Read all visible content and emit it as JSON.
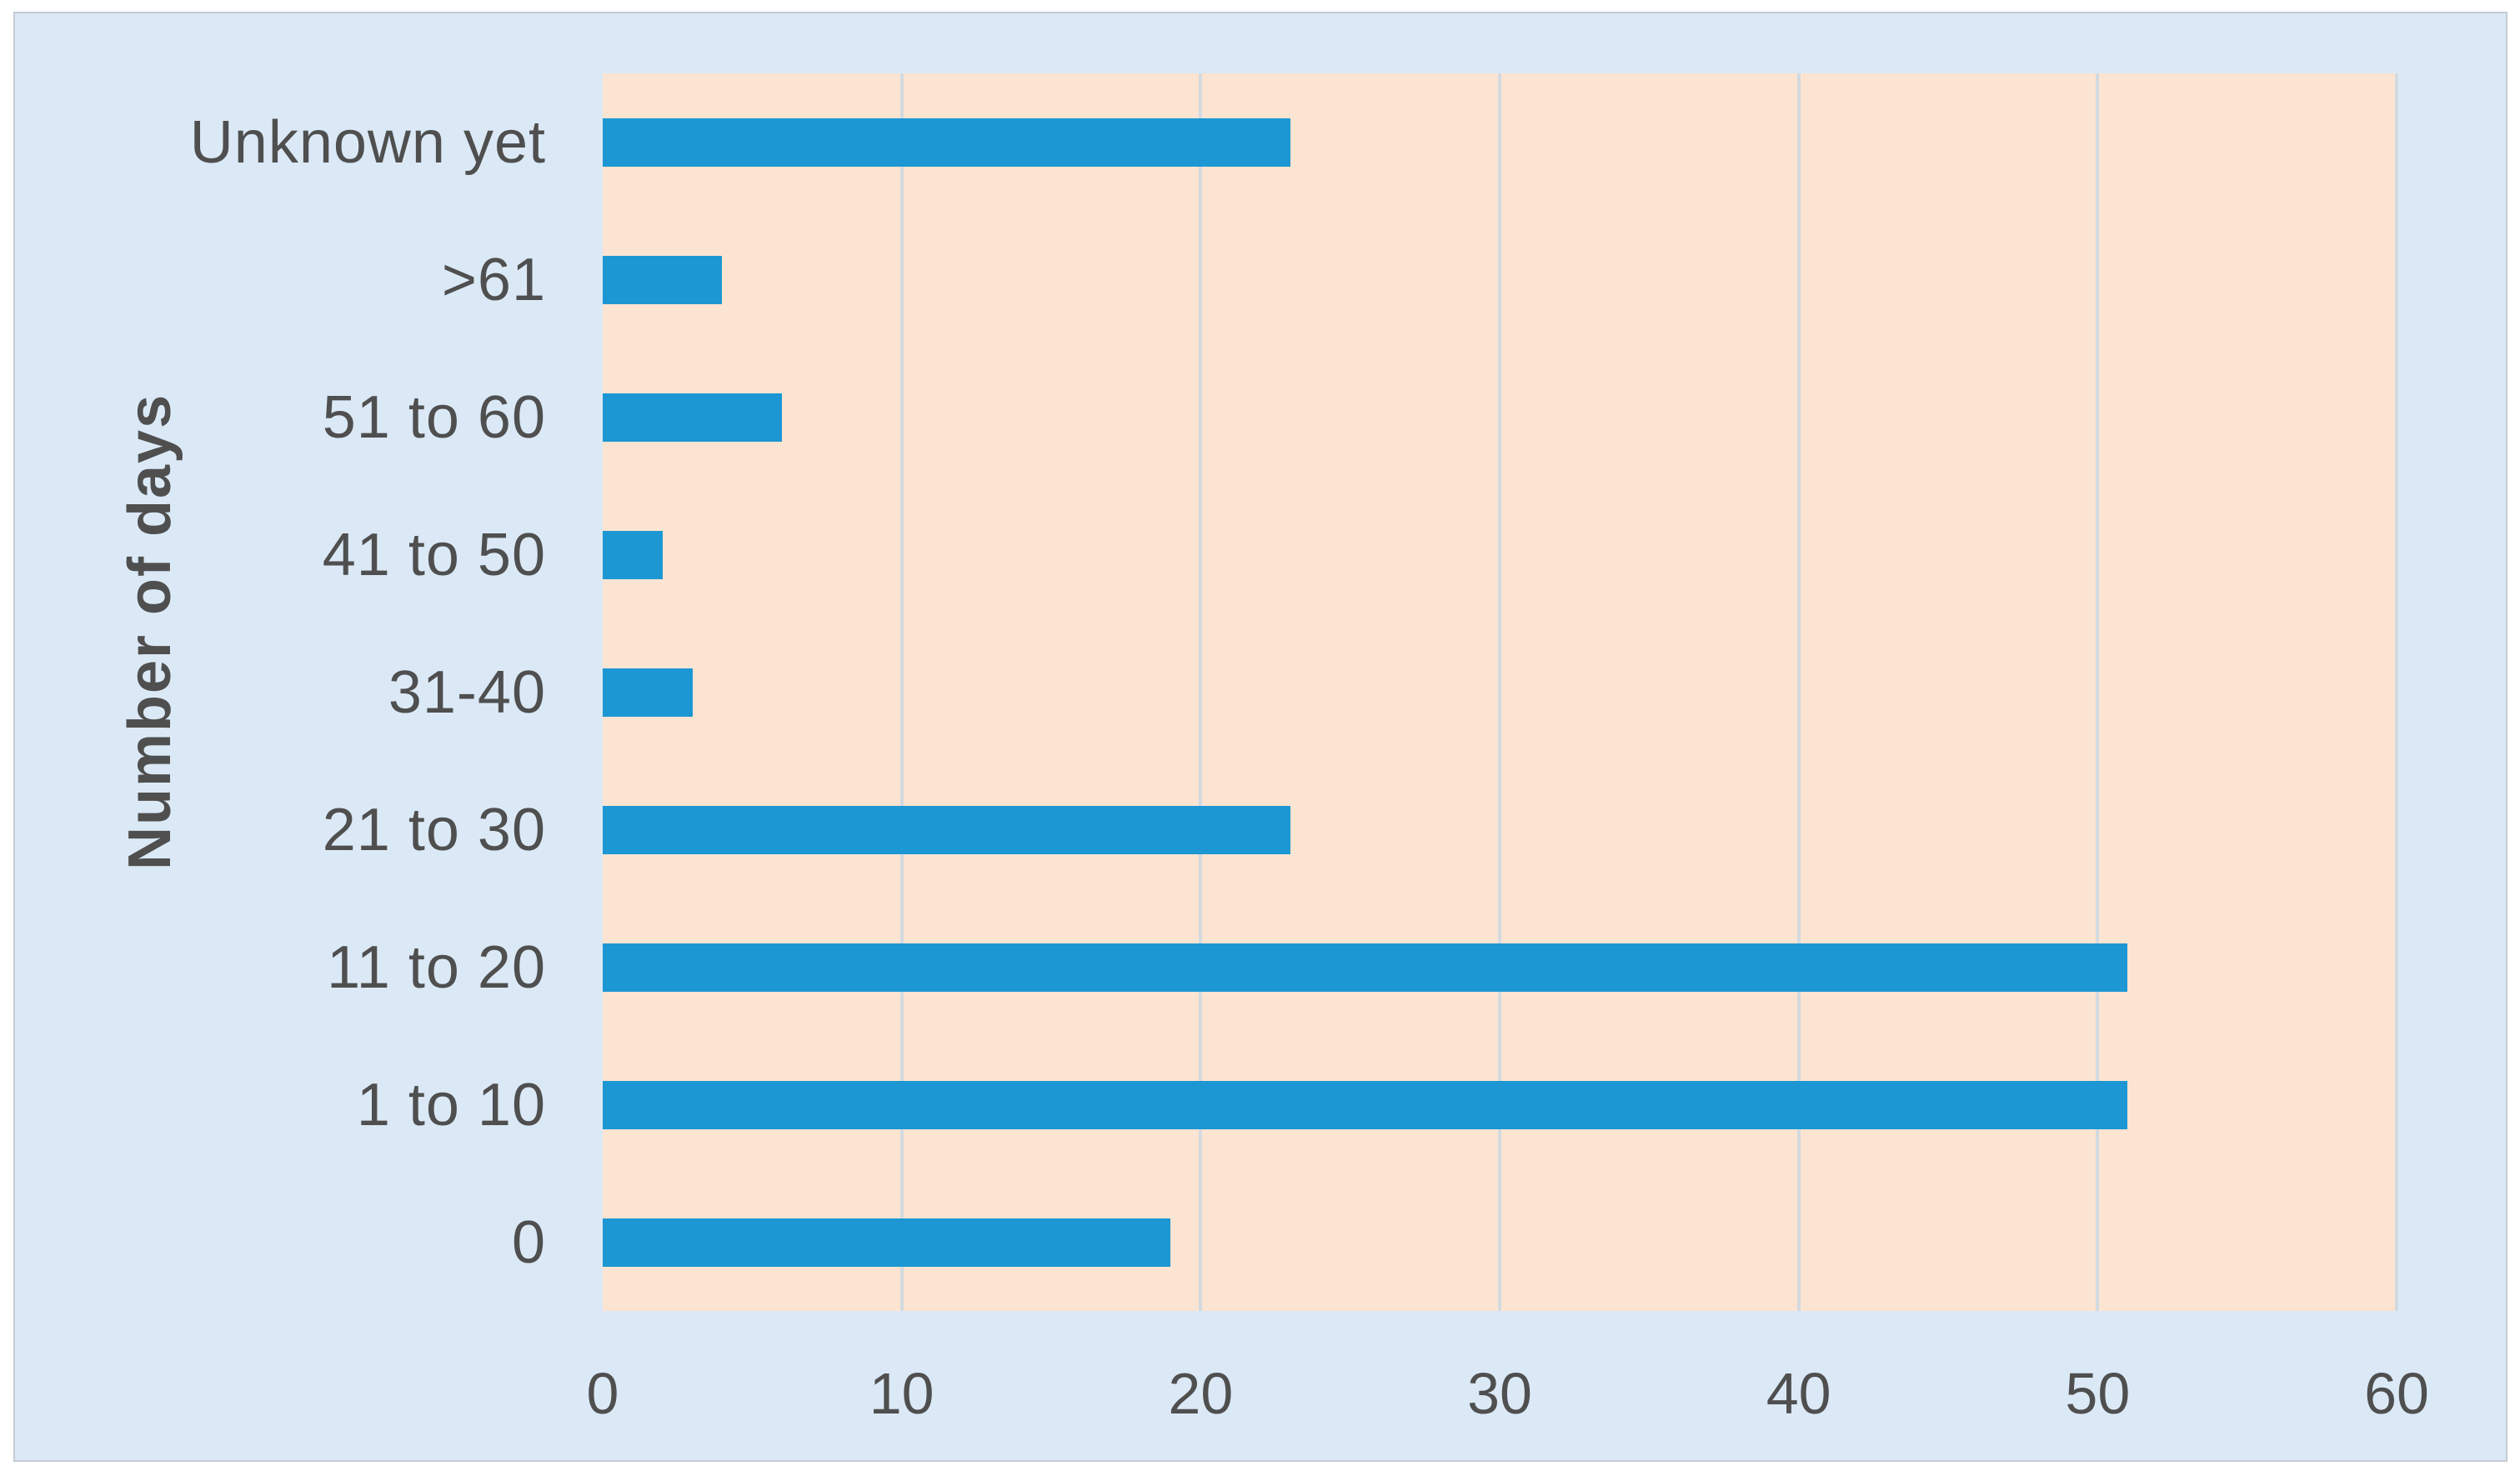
{
  "chart_data": {
    "type": "bar",
    "orientation": "horizontal",
    "title": "",
    "xlabel": "",
    "ylabel": "Number of days",
    "categories": [
      "Unknown yet",
      ">61",
      "51 to 60",
      "41 to 50",
      "31-40",
      "21 to 30",
      "11 to 20",
      "1 to 10",
      "0"
    ],
    "values": [
      23,
      4,
      6,
      2,
      3,
      23,
      51,
      51,
      19
    ],
    "x_ticks": [
      0,
      10,
      20,
      30,
      40,
      50,
      60
    ],
    "xlim": [
      0,
      60
    ],
    "grid": "vertical-only",
    "legend": "none",
    "colors": {
      "bar": "#1d97d3",
      "plot_background": "#fce4d2",
      "canvas_background": "#dbe9f6",
      "gridline": "#d3dae0",
      "text": "#4f4f4f"
    }
  }
}
